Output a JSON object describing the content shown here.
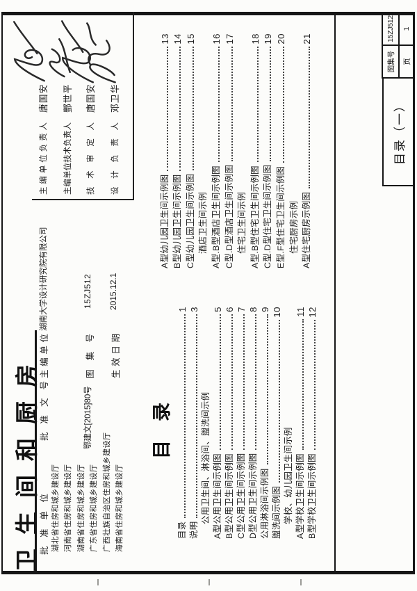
{
  "doc": {
    "title": "卫生间和厨房",
    "toc_heading": "目　录",
    "sheet_name": "目录（一）",
    "atlas_label": "图集号",
    "atlas_no": "15ZJ512",
    "page_label": "页",
    "page_no": "1"
  },
  "header": {
    "approve_label": "批准单位",
    "approvers": [
      "湖北省住房和城乡建设厅",
      "河南省住房和城乡建设厅",
      "湖南省住房和城乡建设厅",
      "广东省住房和城乡建设厅",
      "广西壮族自治区住房和城乡建设厅",
      "海南省住房和城乡建设厅"
    ],
    "approve_doc_label": "批准文号",
    "approve_doc_no": "鄂建文[2015]80号",
    "chief_editor_label": "主编单位",
    "chief_editor": "湖南大学设计研究院有限公司",
    "atlas_label": "图集号",
    "atlas_no": "15ZJ512",
    "effective_label": "生效日期",
    "effective_date": "2015.12.1",
    "personnel": [
      {
        "role": "主编单位负责人",
        "name": "唐国安"
      },
      {
        "role": "主编单位技术负责人",
        "name": "酆世平"
      },
      {
        "role": "技术审定人",
        "name": "唐国安"
      },
      {
        "role": "设计负责人",
        "name": "邓卫华"
      }
    ]
  },
  "toc": {
    "col1": [
      {
        "label": "目录",
        "page": "1"
      },
      {
        "label": "说明",
        "page": "3"
      },
      {
        "label": "公用卫生间、淋浴间、盥洗间示例",
        "section": true
      },
      {
        "label": "A型公用卫生间示例图",
        "page": "5"
      },
      {
        "label": "B型公用卫生间示例图",
        "page": "6"
      },
      {
        "label": "C型公用卫生间示例图",
        "page": "7"
      },
      {
        "label": "D型公用卫生间示例图",
        "page": "8"
      },
      {
        "label": "公用淋浴间示例图",
        "page": "9"
      },
      {
        "label": "盥洗间示例图",
        "page": "10"
      },
      {
        "label": "学校、幼儿园卫生间示例",
        "section": true
      },
      {
        "label": "A型学校卫生间示例图",
        "page": "11"
      },
      {
        "label": "B型学校卫生间示例图",
        "page": "12"
      }
    ],
    "col2": [
      {
        "label": "A型幼儿园卫生间示例图",
        "page": "13"
      },
      {
        "label": "B型幼儿园卫生间示例图",
        "page": "14"
      },
      {
        "label": "C型幼儿园卫生间示例图",
        "page": "15"
      },
      {
        "label": "酒店卫生间示例",
        "section": true
      },
      {
        "label": "A型.B型酒店卫生间示例图",
        "page": "16"
      },
      {
        "label": "C型.D型酒店卫生间示例图",
        "page": "17"
      },
      {
        "label": "住宅卫生间示例",
        "section": true
      },
      {
        "label": "A型.B型住宅卫生间示例图",
        "page": "18"
      },
      {
        "label": "C型.D型住宅卫生间示例图",
        "page": "19"
      },
      {
        "label": "E型.F型住宅卫生间示例图",
        "page": "20"
      },
      {
        "label": "住宅厨房示例",
        "section": true
      },
      {
        "label": "A型住宅厨房示例图",
        "page": "21"
      }
    ]
  }
}
